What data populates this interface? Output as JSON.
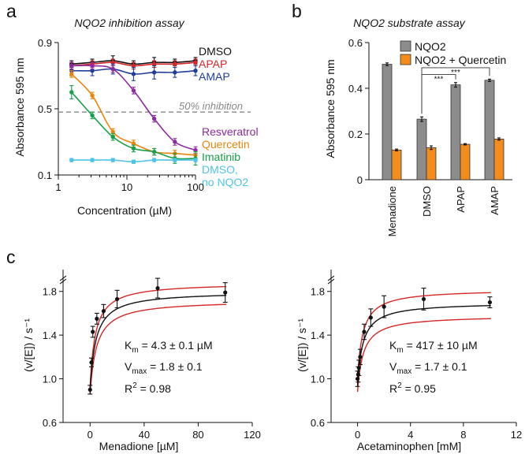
{
  "panel_letters": {
    "a": "a",
    "b": "b",
    "c": "c"
  },
  "chart_data": [
    {
      "id": "a",
      "type": "line",
      "title": "NQO2 inhibition assay",
      "xlabel": "Concentration (µM)",
      "ylabel": "Absorbance 595 nm",
      "xscale": "log",
      "xlim": [
        1,
        100
      ],
      "ylim": [
        0.1,
        0.9
      ],
      "xticks": [
        1,
        10,
        100
      ],
      "yticks": [
        0.1,
        0.5,
        0.9
      ],
      "xtick_labels": [
        "1",
        "10",
        "100"
      ],
      "ytick_labels": [
        "0.1",
        "0.5",
        "0.9"
      ],
      "reference_line": {
        "y": 0.48,
        "label": "50% inhibition",
        "color": "#888888"
      },
      "x": [
        1.56,
        3.125,
        6.25,
        12.5,
        25,
        50,
        100
      ],
      "series": [
        {
          "name": "DMSO",
          "color": "#111111",
          "values": [
            0.77,
            0.78,
            0.79,
            0.77,
            0.78,
            0.78,
            0.79
          ],
          "errors": [
            0.02,
            0.02,
            0.03,
            0.02,
            0.03,
            0.02,
            0.02
          ]
        },
        {
          "name": "APAP",
          "color": "#d62728",
          "values": [
            0.76,
            0.77,
            0.78,
            0.76,
            0.77,
            0.77,
            0.78
          ],
          "errors": [
            0.02,
            0.02,
            0.02,
            0.02,
            0.02,
            0.02,
            0.02
          ]
        },
        {
          "name": "AMAP",
          "color": "#1f3d99",
          "values": [
            0.73,
            0.73,
            0.74,
            0.71,
            0.72,
            0.72,
            0.73
          ],
          "errors": [
            0.03,
            0.03,
            0.03,
            0.04,
            0.04,
            0.03,
            0.03
          ]
        },
        {
          "name": "Resveratrol",
          "color": "#8e2aa0",
          "values": [
            0.76,
            0.76,
            0.74,
            0.61,
            0.44,
            0.3,
            0.25
          ],
          "errors": [
            0.02,
            0.02,
            0.02,
            0.02,
            0.02,
            0.02,
            0.02
          ]
        },
        {
          "name": "Quercetin",
          "color": "#e8850c",
          "values": [
            0.71,
            0.58,
            0.36,
            0.29,
            0.24,
            0.23,
            0.22
          ],
          "errors": [
            0.02,
            0.02,
            0.02,
            0.02,
            0.02,
            0.02,
            0.02
          ]
        },
        {
          "name": "Imatinib",
          "color": "#17a04a",
          "values": [
            0.6,
            0.46,
            0.33,
            0.26,
            0.24,
            0.2,
            0.2
          ],
          "errors": [
            0.04,
            0.02,
            0.02,
            0.02,
            0.02,
            0.03,
            0.04
          ]
        },
        {
          "name": "DMSO,\nno NQO2",
          "color": "#4fc3e8",
          "values": [
            0.19,
            0.19,
            0.19,
            0.18,
            0.19,
            0.19,
            0.19
          ],
          "errors": [
            0.01,
            0.01,
            0.01,
            0.01,
            0.01,
            0.01,
            0.01
          ]
        }
      ],
      "legend_top": [
        "DMSO",
        "APAP",
        "AMAP"
      ],
      "legend_bottom": [
        "Resveratrol",
        "Quercetin",
        "Imatinib",
        "DMSO,",
        "no NQO2"
      ]
    },
    {
      "id": "b",
      "type": "bar",
      "title": "NQO2 substrate assay",
      "xlabel": "",
      "ylabel": "Absorbance 595 nm",
      "ylim": [
        0,
        0.6
      ],
      "yticks": [
        0,
        0.2,
        0.4,
        0.6
      ],
      "ytick_labels": [
        "0",
        "0.2",
        "0.4",
        "0.6"
      ],
      "categories": [
        "Menadione",
        "DMSO",
        "APAP",
        "AMAP"
      ],
      "series": [
        {
          "name": "NQO2",
          "color": "#8c8c8c",
          "values": [
            0.505,
            0.265,
            0.415,
            0.435
          ],
          "errors": [
            0.006,
            0.01,
            0.01,
            0.005
          ]
        },
        {
          "name": "NQO2 + Quercetin",
          "color": "#f28c1c",
          "values": [
            0.13,
            0.14,
            0.155,
            0.178
          ],
          "errors": [
            0.004,
            0.008,
            0.003,
            0.005
          ]
        }
      ],
      "significance": [
        {
          "from": "DMSO",
          "to": "APAP",
          "label": "***"
        },
        {
          "from": "DMSO",
          "to": "AMAP",
          "label": "***"
        }
      ]
    },
    {
      "id": "c1",
      "type": "scatter",
      "title": "",
      "xlabel": "Menadione [µM]",
      "ylabel": "(v/[E]) / s⁻¹",
      "xlim": [
        -20,
        120
      ],
      "ylim": [
        0.6,
        2.0
      ],
      "xticks": [
        0,
        40,
        80,
        120
      ],
      "yticks": [
        0.6,
        1.0,
        1.4,
        1.8
      ],
      "xtick_labels": [
        "0",
        "40",
        "80",
        "120"
      ],
      "ytick_labels": [
        "0.6",
        "1.0",
        "1.4",
        "1.8"
      ],
      "x": [
        0,
        1,
        2,
        5,
        10,
        20,
        50,
        100
      ],
      "values": [
        0.9,
        1.15,
        1.43,
        1.55,
        1.62,
        1.73,
        1.83,
        1.79
      ],
      "errors": [
        0.04,
        0.04,
        0.05,
        0.05,
        0.06,
        0.08,
        0.09,
        0.09
      ],
      "fit": {
        "Km": 4.3,
        "Vmax": 1.8,
        "V0": 0.9,
        "color": "#111111"
      },
      "ci_upper": {
        "Km": 3.9,
        "Vmax": 1.88,
        "V0": 0.92,
        "color": "#d62728"
      },
      "ci_lower": {
        "Km": 4.8,
        "Vmax": 1.72,
        "V0": 0.86,
        "color": "#d62728"
      },
      "annotations": {
        "km_main": "K",
        "km_sub": "m",
        "km_value": " = 4.3 ± 0.1 µM",
        "vmax_main": "V",
        "vmax_sub": "max",
        "vmax_value": " = 1.8 ± 0.1",
        "r2_main": "R",
        "r2_sup": "2",
        "r2_value": " = 0.98"
      }
    },
    {
      "id": "c2",
      "type": "scatter",
      "title": "",
      "xlabel": "Acetaminophen [mM]",
      "ylabel": "(v/[E]) / s⁻¹",
      "xlim": [
        -2,
        12
      ],
      "ylim": [
        0.6,
        2.0
      ],
      "xticks": [
        0,
        4,
        8,
        12
      ],
      "yticks": [
        0.6,
        1.0,
        1.4,
        1.8
      ],
      "xtick_labels": [
        "0",
        "4",
        "8",
        "12"
      ],
      "ytick_labels": [
        "0.6",
        "1.0",
        "1.4",
        "1.8"
      ],
      "x": [
        0,
        0.05,
        0.1,
        0.2,
        0.5,
        1,
        2,
        5,
        10
      ],
      "values": [
        1.0,
        1.04,
        1.1,
        1.2,
        1.43,
        1.56,
        1.66,
        1.73,
        1.7
      ],
      "errors": [
        0.07,
        0.07,
        0.07,
        0.07,
        0.07,
        0.08,
        0.1,
        0.1,
        0.05
      ],
      "fit": {
        "Km": 0.417,
        "Vmax": 1.7,
        "V0": 0.95,
        "color": "#111111"
      },
      "ci_upper": {
        "Km": 0.4,
        "Vmax": 1.82,
        "V0": 1.0,
        "color": "#d62728"
      },
      "ci_lower": {
        "Km": 0.44,
        "Vmax": 1.58,
        "V0": 0.88,
        "color": "#d62728"
      },
      "annotations": {
        "km_main": "K",
        "km_sub": "m",
        "km_value": " = 417 ± 10 µM",
        "vmax_main": "V",
        "vmax_sub": "max",
        "vmax_value": " = 1.7 ± 0.1",
        "r2_main": "R",
        "r2_sup": "2",
        "r2_value": " = 0.95"
      }
    }
  ]
}
